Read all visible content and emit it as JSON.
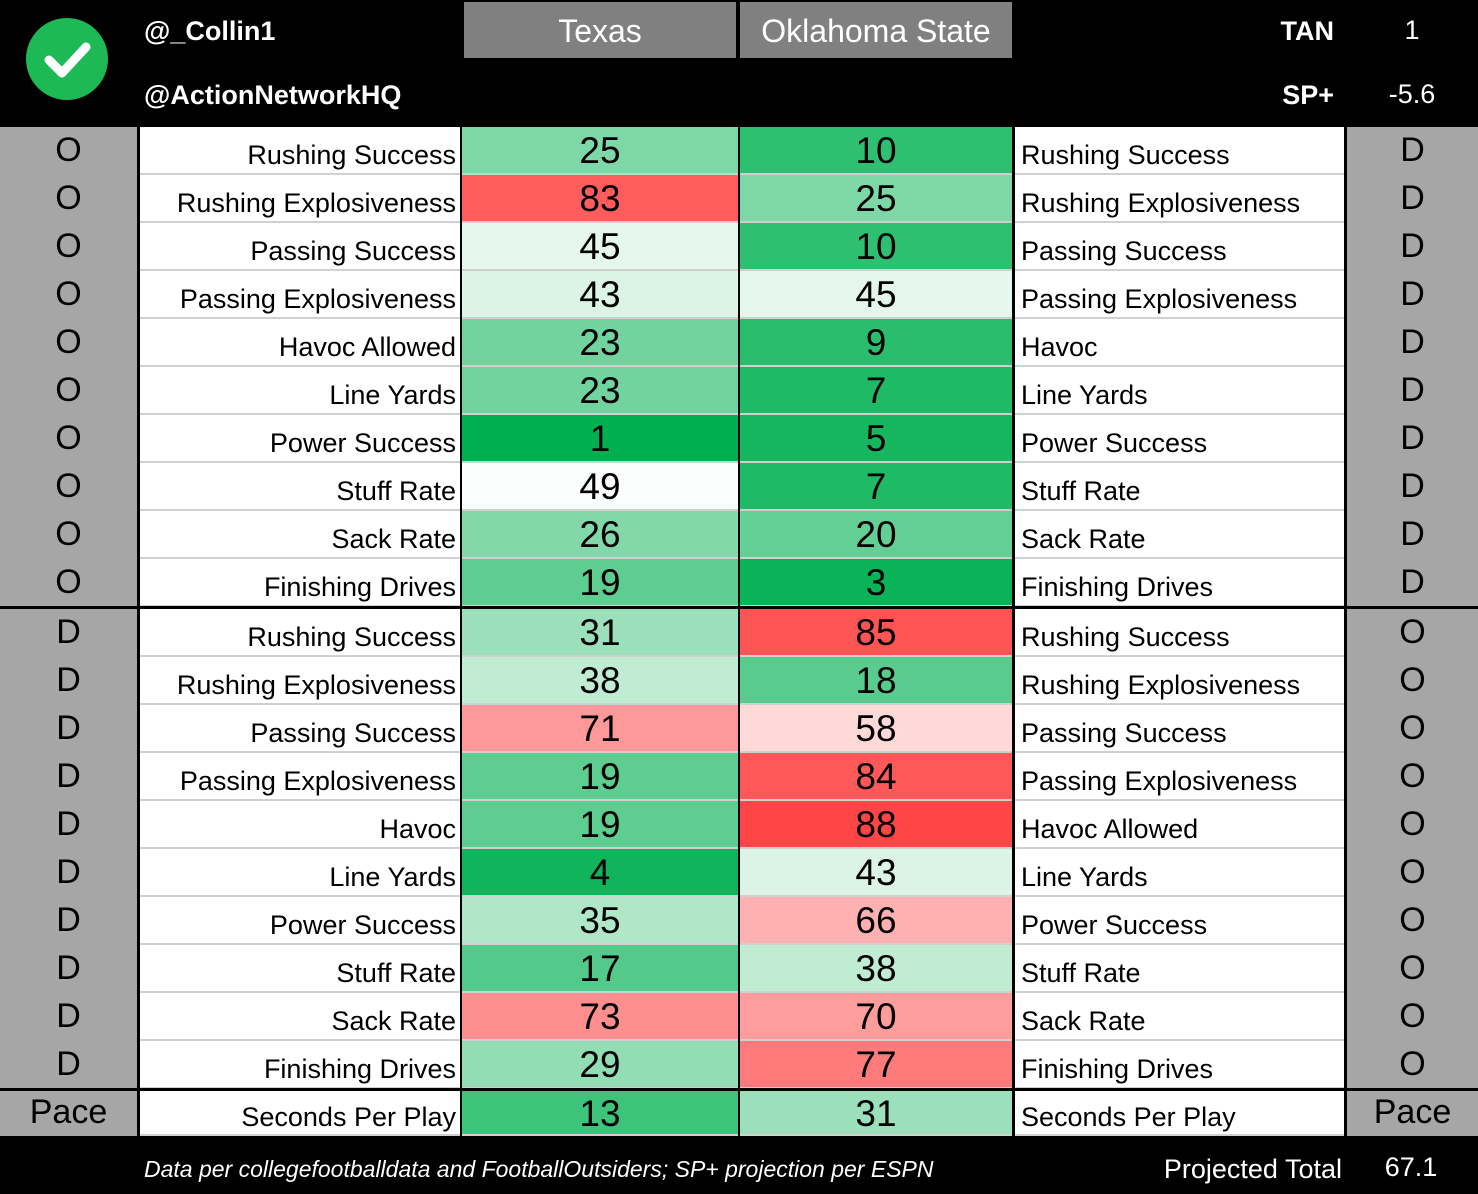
{
  "header": {
    "handle_1": "@_Collin1",
    "handle_2": "@ActionNetworkHQ",
    "team_left": "Texas",
    "team_right": "Oklahoma State",
    "stat_1_label": "TAN",
    "stat_1_value": "1",
    "stat_2_label": "SP+",
    "stat_2_value": "-5.6",
    "badge_icon": "checkmark-icon",
    "badge_color": "#1db954"
  },
  "sections": [
    {
      "left_side": "O",
      "right_side": "D",
      "rows": [
        {
          "left_label": "Rushing Success",
          "left_value": 25,
          "right_value": 10,
          "right_label": "Rushing Success"
        },
        {
          "left_label": "Rushing Explosiveness",
          "left_value": 83,
          "right_value": 25,
          "right_label": "Rushing Explosiveness"
        },
        {
          "left_label": "Passing Success",
          "left_value": 45,
          "right_value": 10,
          "right_label": "Passing Success"
        },
        {
          "left_label": "Passing Explosiveness",
          "left_value": 43,
          "right_value": 45,
          "right_label": "Passing Explosiveness"
        },
        {
          "left_label": "Havoc Allowed",
          "left_value": 23,
          "right_value": 9,
          "right_label": "Havoc"
        },
        {
          "left_label": "Line Yards",
          "left_value": 23,
          "right_value": 7,
          "right_label": "Line Yards"
        },
        {
          "left_label": "Power Success",
          "left_value": 1,
          "right_value": 5,
          "right_label": "Power Success"
        },
        {
          "left_label": "Stuff Rate",
          "left_value": 49,
          "right_value": 7,
          "right_label": "Stuff Rate"
        },
        {
          "left_label": "Sack Rate",
          "left_value": 26,
          "right_value": 20,
          "right_label": "Sack Rate"
        },
        {
          "left_label": "Finishing Drives",
          "left_value": 19,
          "right_value": 3,
          "right_label": "Finishing Drives"
        }
      ]
    },
    {
      "left_side": "D",
      "right_side": "O",
      "rows": [
        {
          "left_label": "Rushing Success",
          "left_value": 31,
          "right_value": 85,
          "right_label": "Rushing Success"
        },
        {
          "left_label": "Rushing Explosiveness",
          "left_value": 38,
          "right_value": 18,
          "right_label": "Rushing Explosiveness"
        },
        {
          "left_label": "Passing Success",
          "left_value": 71,
          "right_value": 58,
          "right_label": "Passing Success"
        },
        {
          "left_label": "Passing Explosiveness",
          "left_value": 19,
          "right_value": 84,
          "right_label": "Passing Explosiveness"
        },
        {
          "left_label": "Havoc",
          "left_value": 19,
          "right_value": 88,
          "right_label": "Havoc Allowed"
        },
        {
          "left_label": "Line Yards",
          "left_value": 4,
          "right_value": 43,
          "right_label": "Line Yards"
        },
        {
          "left_label": "Power Success",
          "left_value": 35,
          "right_value": 66,
          "right_label": "Power Success"
        },
        {
          "left_label": "Stuff Rate",
          "left_value": 17,
          "right_value": 38,
          "right_label": "Stuff Rate"
        },
        {
          "left_label": "Sack Rate",
          "left_value": 73,
          "right_value": 70,
          "right_label": "Sack Rate"
        },
        {
          "left_label": "Finishing Drives",
          "left_value": 29,
          "right_value": 77,
          "right_label": "Finishing Drives"
        }
      ]
    }
  ],
  "pace": {
    "left_side": "Pace",
    "right_side": "Pace",
    "left_label": "Seconds Per Play",
    "left_value": 13,
    "right_value": 31,
    "right_label": "Seconds Per Play"
  },
  "footer": {
    "source": "Data per collegefootballdata and FootballOutsiders; SP+ projection per ESPN",
    "total_label": "Projected Total",
    "total_value": "67.1"
  },
  "colors": {
    "best": "#00b050",
    "neutral": "#ffffff",
    "worst": "#ff3b3b",
    "side_gray": "#a6a6a6",
    "team_header_gray": "#808080"
  }
}
